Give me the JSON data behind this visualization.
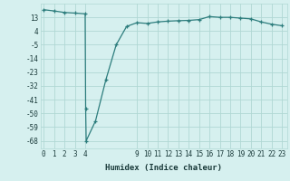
{
  "x": [
    0,
    1,
    2,
    3,
    4,
    4.05,
    4.1,
    5,
    6,
    7,
    8,
    9,
    10,
    11,
    12,
    13,
    14,
    15,
    16,
    17,
    18,
    19,
    20,
    21,
    22,
    23
  ],
  "y": [
    18,
    17.2,
    16.2,
    15.8,
    15.3,
    -47,
    -68,
    -55,
    -28,
    -5,
    7,
    9.5,
    9,
    10,
    10.5,
    10.8,
    11,
    11.5,
    13.5,
    13,
    13,
    12.5,
    12,
    10,
    8.5,
    7.5
  ],
  "line_color": "#2d7d7d",
  "marker_color": "#2d7d7d",
  "bg_color": "#d6f0ef",
  "grid_color": "#b0d8d4",
  "xlabel": "Humidex (Indice chaleur)",
  "yticks": [
    13,
    4,
    -5,
    -14,
    -23,
    -32,
    -41,
    -50,
    -59,
    -68
  ],
  "xticks": [
    0,
    1,
    2,
    3,
    4,
    9,
    10,
    11,
    12,
    13,
    14,
    15,
    16,
    17,
    18,
    19,
    20,
    21,
    22,
    23
  ],
  "ylim": [
    -73,
    22
  ],
  "xlim": [
    -0.3,
    23.5
  ],
  "font_color": "#1a3a3a",
  "tick_fontsize": 5.5,
  "xlabel_fontsize": 6.5
}
